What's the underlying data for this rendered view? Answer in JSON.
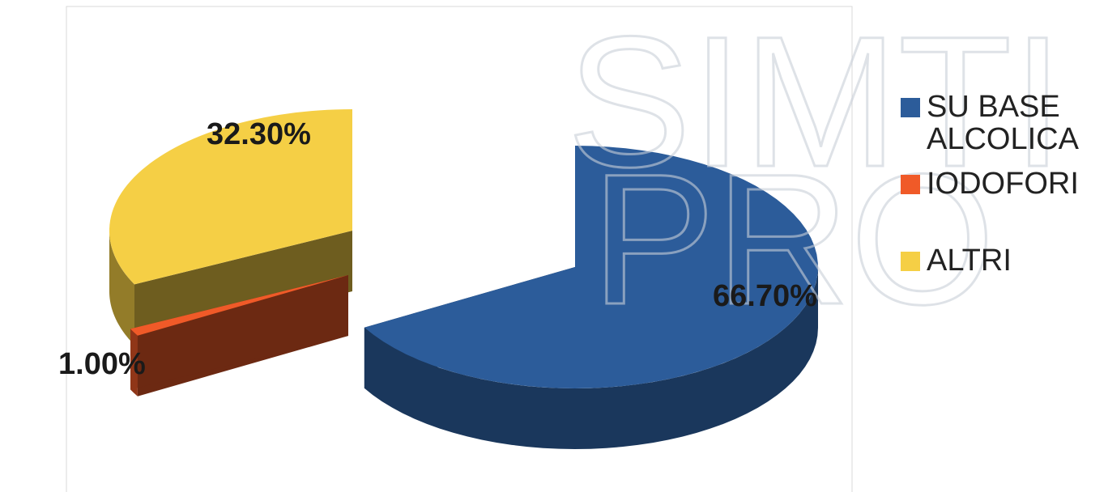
{
  "chart_data": {
    "type": "pie3d",
    "watermark": [
      "SIMTI",
      "PRO"
    ],
    "categories": [
      "SU BASE ALCOLICA",
      "IODOFORI",
      "ALTRI"
    ],
    "values": [
      66.7,
      1.0,
      32.3
    ],
    "value_labels": [
      "66.70%",
      "1.00%",
      "32.30%"
    ],
    "colors": [
      "#2c5c9a",
      "#f05a28",
      "#f5cf45"
    ],
    "legend": "right"
  }
}
